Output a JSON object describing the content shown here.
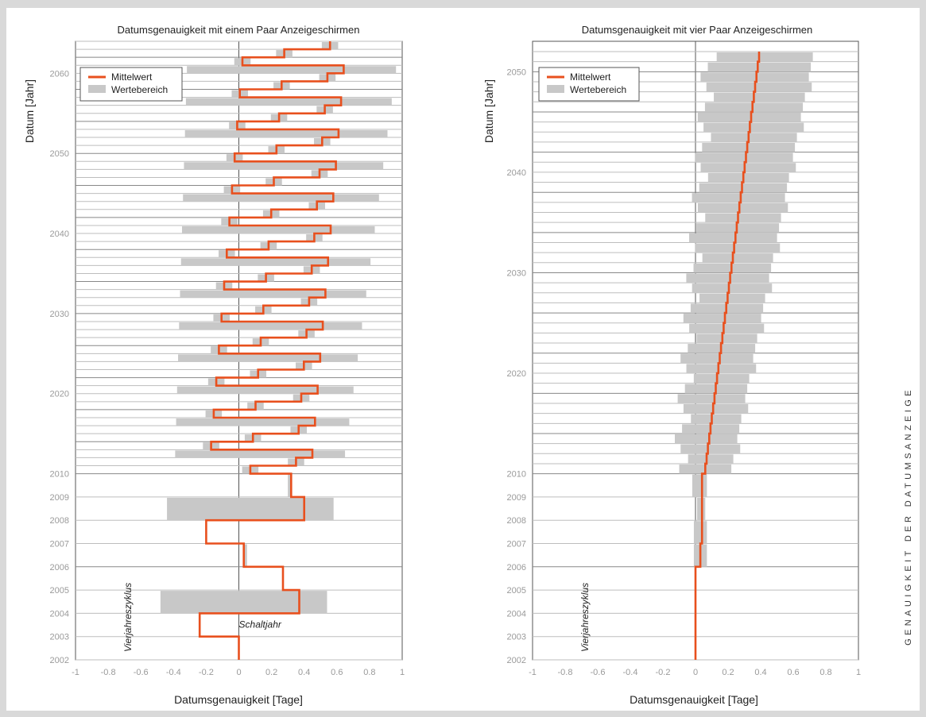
{
  "side_title": "GENAUIGKEIT DER DATUMSANZEIGE",
  "colors": {
    "mean": "#e8501e",
    "range": "#c8c8c8",
    "axis": "#555555",
    "grid": "#888888",
    "minorgrid": "#bdbdbd",
    "tick": "#9a9a9a"
  },
  "chart_data": [
    {
      "type": "step",
      "title": "Datumsgenauigkeit mit einem Paar Anzeigeschirmen",
      "xlabel": "Datumsgenauigkeit [Tage]",
      "ylabel": "Datum [Jahr]",
      "xlim": [
        -1,
        1
      ],
      "ylim": [
        2002,
        2061
      ],
      "x_ticks": [
        "-1",
        "-0.8",
        "-0.6",
        "-0.4",
        "-0.2",
        "0",
        "0.2",
        "0.4",
        "0.6",
        "0.8",
        "1"
      ],
      "x_tick_values": [
        -1,
        -0.8,
        -0.6,
        -0.4,
        -0.2,
        0,
        0.2,
        0.4,
        0.6,
        0.8,
        1
      ],
      "y_ticks_early": [
        "2002",
        "2003",
        "2004",
        "2005",
        "2006",
        "2007",
        "2008",
        "2009",
        "2010"
      ],
      "y_ticks_late": [
        "2020",
        "2030",
        "2040",
        "2050",
        "2060"
      ],
      "y_tick_values_late": [
        2020,
        2030,
        2040,
        2050,
        2060
      ],
      "legend": {
        "mean": "Mittelwert",
        "range": "Wertebereich",
        "position": "top-left"
      },
      "annotations": {
        "cycle": "Vierjahreszyklus",
        "leap": "Schaltjahr"
      },
      "early_means": [
        0,
        -0.24,
        0.37,
        0.27,
        0.03,
        -0.2,
        0.4,
        0.32
      ],
      "early_ranges": [
        [
          0,
          0
        ],
        [
          -0.24,
          -0.24
        ],
        [
          -0.48,
          0.54
        ],
        [
          0.27,
          0.27
        ],
        [
          0.03,
          0.05
        ],
        [
          -0.2,
          -0.2
        ],
        [
          -0.44,
          0.58
        ],
        [
          0.3,
          0.32
        ]
      ],
      "late_start_mean": 0.07,
      "late_amplitude": 0.28,
      "late_growth_per_cycle": 0.004,
      "late_range_halfwidth": 0.34,
      "late_range_growth_per_cycle": 0.002
    },
    {
      "type": "step",
      "title": "Datumsgenauigkeit mit vier Paar Anzeigeschirmen",
      "xlabel": "Datumsgenauigkeit [Tage]",
      "ylabel": "Datum [Jahr]",
      "xlim": [
        -1,
        1
      ],
      "ylim": [
        2002,
        2051
      ],
      "x_ticks": [
        "-1",
        "-0.8",
        "-0.6",
        "-0.4",
        "-0.2",
        "0",
        "0.2",
        "0.4",
        "0.6",
        "0.8",
        "1"
      ],
      "x_tick_values": [
        -1,
        -0.8,
        -0.6,
        -0.4,
        -0.2,
        0,
        0.2,
        0.4,
        0.6,
        0.8,
        1
      ],
      "y_ticks_early": [
        "2002",
        "2003",
        "2004",
        "2005",
        "2006",
        "2007",
        "2008",
        "2009",
        "2010"
      ],
      "y_ticks_late": [
        "2020",
        "2030",
        "2040",
        "2050"
      ],
      "y_tick_values_late": [
        2020,
        2030,
        2040,
        2050
      ],
      "legend": {
        "mean": "Mittelwert",
        "range": "Wertebereich",
        "position": "top-left"
      },
      "annotations": {
        "cycle": "Vierjahreszyklus"
      },
      "early_means": [
        0,
        0,
        0,
        0,
        0.03,
        0.04,
        0.04,
        0.04
      ],
      "early_ranges": [
        [
          0,
          0
        ],
        [
          0,
          0
        ],
        [
          0,
          0
        ],
        [
          0,
          0
        ],
        [
          -0.01,
          0.07
        ],
        [
          -0.01,
          0.07
        ],
        [
          0.01,
          0.06
        ],
        [
          -0.02,
          0.07
        ]
      ],
      "late_start_mean": 0.06,
      "late_end_mean": 0.39,
      "late_range_start": [
        -0.1,
        0.22
      ],
      "late_range_end": [
        0.08,
        0.72
      ]
    }
  ]
}
